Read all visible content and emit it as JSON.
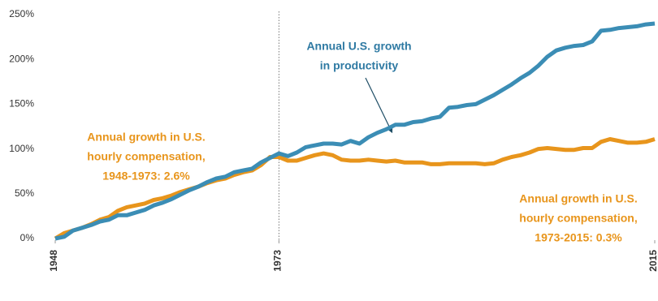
{
  "chart_data": {
    "type": "line",
    "x": [
      1948,
      1949,
      1950,
      1951,
      1952,
      1953,
      1954,
      1955,
      1956,
      1957,
      1958,
      1959,
      1960,
      1961,
      1962,
      1963,
      1964,
      1965,
      1966,
      1967,
      1968,
      1969,
      1970,
      1971,
      1972,
      1973,
      1974,
      1975,
      1976,
      1977,
      1978,
      1979,
      1980,
      1981,
      1982,
      1983,
      1984,
      1985,
      1986,
      1987,
      1988,
      1989,
      1990,
      1991,
      1992,
      1993,
      1994,
      1995,
      1996,
      1997,
      1998,
      1999,
      2000,
      2001,
      2002,
      2003,
      2004,
      2005,
      2006,
      2007,
      2008,
      2009,
      2010,
      2011,
      2012,
      2013,
      2014,
      2015
    ],
    "series": [
      {
        "name": "productivity",
        "color": "#3b8db5",
        "values": [
          0,
          2,
          9,
          12,
          15,
          19,
          21,
          26,
          26,
          29,
          32,
          37,
          40,
          44,
          49,
          54,
          58,
          63,
          67,
          69,
          74,
          76,
          78,
          85,
          90,
          95,
          92,
          96,
          102,
          104,
          106,
          106,
          105,
          109,
          106,
          113,
          118,
          122,
          127,
          127,
          130,
          131,
          134,
          136,
          146,
          147,
          149,
          150,
          155,
          160,
          166,
          172,
          179,
          185,
          193,
          203,
          210,
          213,
          215,
          216,
          220,
          232,
          233,
          235,
          236,
          237,
          239,
          240
        ]
      },
      {
        "name": "compensation",
        "color": "#e8951c",
        "values": [
          0,
          6,
          9,
          12,
          16,
          21,
          24,
          31,
          35,
          37,
          39,
          43,
          45,
          48,
          52,
          55,
          58,
          62,
          65,
          67,
          71,
          74,
          76,
          82,
          91,
          91,
          87,
          87,
          90,
          93,
          95,
          93,
          88,
          87,
          87,
          88,
          87,
          86,
          87,
          85,
          85,
          85,
          83,
          83,
          84,
          84,
          84,
          84,
          83,
          84,
          88,
          91,
          93,
          96,
          100,
          101,
          100,
          99,
          99,
          101,
          101,
          108,
          111,
          109,
          107,
          107,
          108,
          111
        ]
      }
    ],
    "xlim": [
      1948,
      2015
    ],
    "xticks": [
      1948,
      1973,
      2015
    ],
    "ylim": [
      0,
      250
    ],
    "yticks": [
      {
        "value": 0,
        "label": "0%"
      },
      {
        "value": 50,
        "label": "50%"
      },
      {
        "value": 100,
        "label": "100%"
      },
      {
        "value": 150,
        "label": "150%"
      },
      {
        "value": 200,
        "label": "200%"
      },
      {
        "value": 250,
        "label": "250%"
      }
    ],
    "grid": false,
    "marker_line": 1973,
    "annotations": [
      {
        "lines": [
          "Annual U.S. growth",
          "in productivity"
        ],
        "color": "#2f7aa3"
      },
      {
        "lines": [
          "Annual growth in U.S.",
          "hourly compensation,",
          "1948-1973: 2.6%"
        ],
        "color": "#e8951c"
      },
      {
        "lines": [
          "Annual growth in U.S.",
          "hourly compensation,",
          "1973-2015: 0.3%"
        ],
        "color": "#e8951c"
      }
    ]
  }
}
